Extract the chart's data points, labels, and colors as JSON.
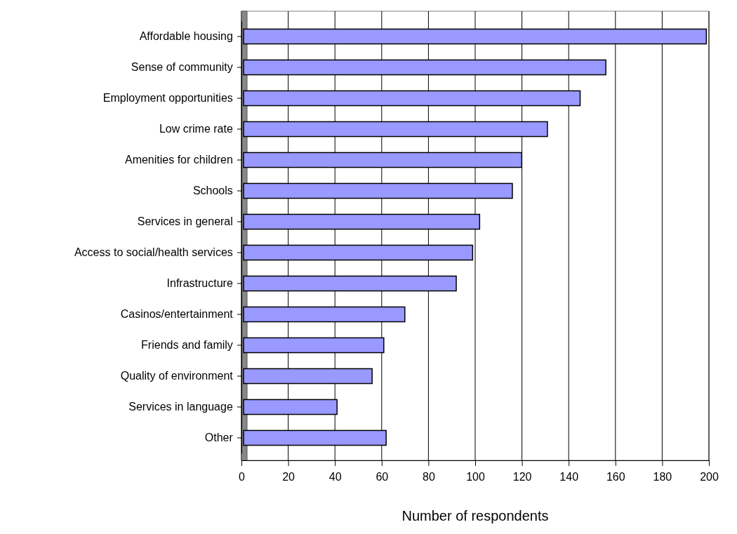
{
  "chart_data": {
    "type": "bar",
    "orientation": "horizontal",
    "xlabel": "Number of respondents",
    "categories": [
      "Affordable housing",
      "Sense of community",
      "Employment opportunities",
      "Low crime rate",
      "Amenities for children",
      "Schools",
      "Services in general",
      "Access to social/health services",
      "Infrastructure",
      "Casinos/entertainment",
      "Friends and family",
      "Quality of environment",
      "Services in language",
      "Other"
    ],
    "values": [
      198,
      155,
      144,
      130,
      119,
      115,
      101,
      98,
      91,
      69,
      60,
      55,
      40,
      61
    ],
    "color": "#9999ff",
    "xlim": [
      0,
      200
    ],
    "xticks": [
      0,
      20,
      40,
      60,
      80,
      100,
      120,
      140,
      160,
      180,
      200
    ],
    "grid": "x"
  }
}
